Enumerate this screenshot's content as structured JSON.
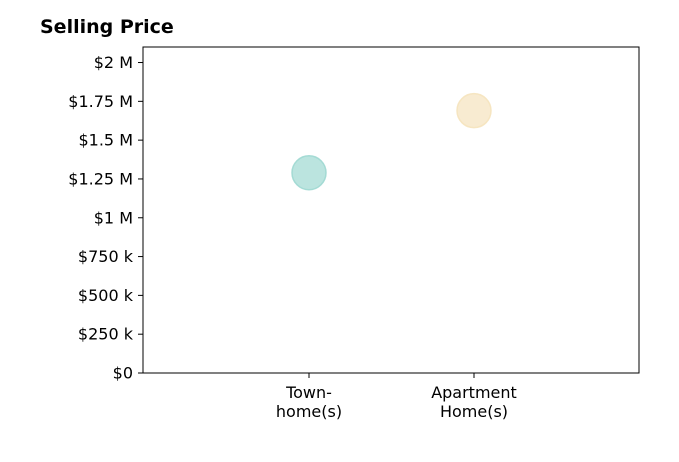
{
  "chart_data": {
    "type": "scatter",
    "title": "Selling Price",
    "xlabel": "",
    "ylabel": "",
    "categories": [
      [
        "Town-",
        "home(s)"
      ],
      [
        "Apartment",
        "Home(s)"
      ]
    ],
    "values": [
      1290000,
      1690000
    ],
    "colors": [
      "#9ed8d2",
      "#f5e3bd"
    ],
    "ylim": [
      0,
      2100000
    ],
    "yticks": [
      {
        "value": 0,
        "label": "$0"
      },
      {
        "value": 250000,
        "label": "$250 k"
      },
      {
        "value": 500000,
        "label": "$500 k"
      },
      {
        "value": 750000,
        "label": "$750 k"
      },
      {
        "value": 1000000,
        "label": "$1 M"
      },
      {
        "value": 1250000,
        "label": "$1.25 M"
      },
      {
        "value": 1500000,
        "label": "$1.5 M"
      },
      {
        "value": 1750000,
        "label": "$1.75 M"
      },
      {
        "value": 2000000,
        "label": "$2 M"
      }
    ],
    "grid": false,
    "legend": "none"
  }
}
